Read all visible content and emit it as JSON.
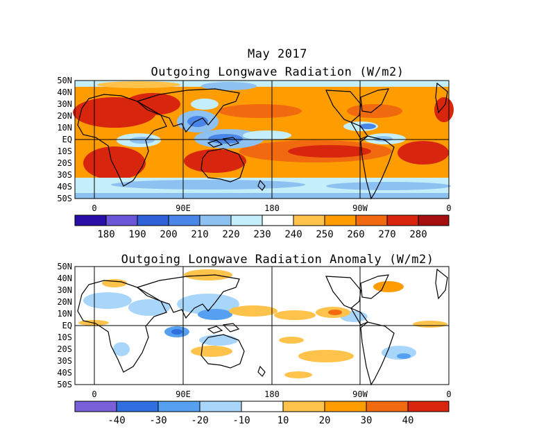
{
  "figure": {
    "title": "May 2017"
  },
  "top_map": {
    "title": "Outgoing Longwave Radiation (W/m2)",
    "lat_labels": [
      "50N",
      "40N",
      "30N",
      "20N",
      "10N",
      "EQ",
      "10S",
      "20S",
      "30S",
      "40S",
      "50S"
    ],
    "lon_labels": [
      "0",
      "90E",
      "180",
      "90W",
      "0"
    ],
    "colorbar": {
      "labels": [
        "180",
        "190",
        "200",
        "210",
        "220",
        "230",
        "240",
        "250",
        "260",
        "270",
        "280"
      ],
      "colors": [
        "#2a0fa6",
        "#6a56d6",
        "#2f62d8",
        "#4a86e8",
        "#8cc1f2",
        "#c4eefa",
        "#ffffff",
        "#ffc24a",
        "#ff9d00",
        "#f26a10",
        "#d8250e",
        "#a50f0f"
      ]
    }
  },
  "bottom_map": {
    "title": "Outgoing Longwave Radiation Anomaly (W/m2)",
    "lat_labels": [
      "50N",
      "40N",
      "30N",
      "20N",
      "10N",
      "EQ",
      "10S",
      "20S",
      "30S",
      "40S",
      "50S"
    ],
    "lon_labels": [
      "0",
      "90E",
      "180",
      "90W",
      "0"
    ],
    "colorbar": {
      "labels": [
        "-40",
        "-30",
        "-20",
        "-10",
        "10",
        "20",
        "30",
        "40"
      ],
      "colors": [
        "#7a60d8",
        "#2f6fe0",
        "#55a0f0",
        "#a8d6fb",
        "#ffffff",
        "#ffc24a",
        "#ff9d00",
        "#f26a10",
        "#d8250e"
      ]
    }
  }
}
